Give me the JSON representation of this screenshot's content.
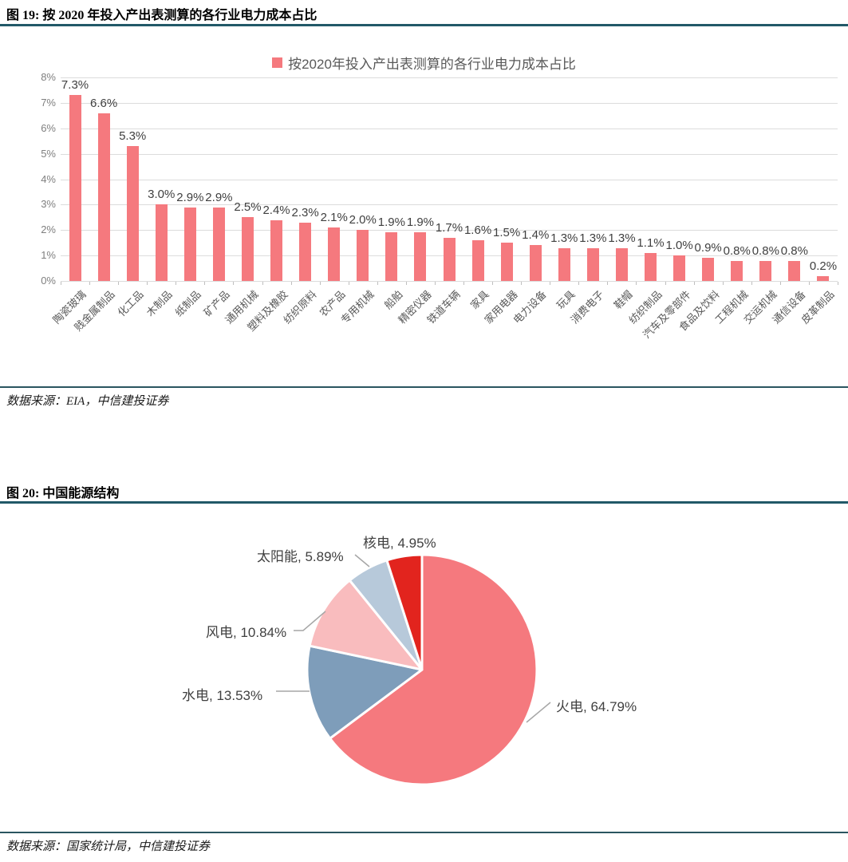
{
  "figure19": {
    "title": "图 19: 按 2020 年投入产出表测算的各行业电力成本占比",
    "source": "数据来源：EIA，中信建投证券"
  },
  "figure20": {
    "title": "图 20: 中国能源结构",
    "source": "数据来源：国家统计局，中信建投证券"
  },
  "colors": {
    "bar": "#F5797E",
    "header_rule": "#215968",
    "grid": "#DCDCDC"
  },
  "chart_data": [
    {
      "type": "bar",
      "legend": "按2020年投入产出表测算的各行业电力成本占比",
      "legend_position": "top",
      "bar_color": "#F5797E",
      "categories": [
        "陶瓷玻璃",
        "贱金属制品",
        "化工品",
        "木制品",
        "纸制品",
        "矿产品",
        "通用机械",
        "塑料及橡胶",
        "纺织原料",
        "农产品",
        "专用机械",
        "船舶",
        "精密仪器",
        "铁道车辆",
        "家具",
        "家用电器",
        "电力设备",
        "玩具",
        "消费电子",
        "鞋帽",
        "纺织制品",
        "汽车及零部件",
        "食品及饮料",
        "工程机械",
        "交运机械",
        "通信设备",
        "皮革制品"
      ],
      "values": [
        7.3,
        6.6,
        5.3,
        3.0,
        2.9,
        2.9,
        2.5,
        2.4,
        2.3,
        2.1,
        2.0,
        1.9,
        1.9,
        1.7,
        1.6,
        1.5,
        1.4,
        1.3,
        1.3,
        1.3,
        1.1,
        1.0,
        0.9,
        0.8,
        0.8,
        0.8,
        0.2
      ],
      "value_labels": [
        "7.3%",
        "6.6%",
        "5.3%",
        "3.0%",
        "2.9%",
        "2.9%",
        "2.5%",
        "2.4%",
        "2.3%",
        "2.1%",
        "2.0%",
        "1.9%",
        "1.9%",
        "1.7%",
        "1.6%",
        "1.5%",
        "1.4%",
        "1.3%",
        "1.3%",
        "1.3%",
        "1.1%",
        "1.0%",
        "0.9%",
        "0.8%",
        "0.8%",
        "0.8%",
        "0.2%"
      ],
      "xlabel": "",
      "ylabel": "",
      "ylim": [
        0,
        8
      ],
      "ytick_labels": [
        "0%",
        "1%",
        "2%",
        "3%",
        "4%",
        "5%",
        "6%",
        "7%",
        "8%"
      ],
      "grid": true
    },
    {
      "type": "pie",
      "title": "中国能源结构",
      "start_angle_deg": 0,
      "direction": "clockwise",
      "slices": [
        {
          "name": "火电",
          "value": 64.79,
          "label": "火电, 64.79%",
          "color": "#F5797E"
        },
        {
          "name": "水电",
          "value": 13.53,
          "label": "水电, 13.53%",
          "color": "#7E9DBA"
        },
        {
          "name": "风电",
          "value": 10.84,
          "label": "风电, 10.84%",
          "color": "#F9BCBE"
        },
        {
          "name": "太阳能",
          "value": 5.89,
          "label": "太阳能, 5.89%",
          "color": "#B7C9DA"
        },
        {
          "name": "核电",
          "value": 4.95,
          "label": "核电, 4.95%",
          "color": "#E2241E"
        }
      ]
    }
  ]
}
